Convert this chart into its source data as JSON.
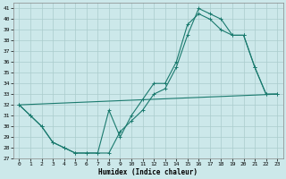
{
  "xlabel": "Humidex (Indice chaleur)",
  "xlim": [
    -0.5,
    23.5
  ],
  "ylim": [
    27,
    41.5
  ],
  "bg_color": "#cce8ea",
  "grid_color": "#aacccc",
  "line_color": "#1a7a6e",
  "line1_x": [
    0,
    1,
    2,
    3,
    4,
    5,
    6,
    7,
    8,
    9,
    10,
    11,
    12,
    13,
    14,
    15,
    16,
    17,
    18,
    19,
    20,
    21,
    22,
    23
  ],
  "line1_y": [
    32,
    31,
    30,
    28.5,
    28,
    27.5,
    27.5,
    27.5,
    27.5,
    29.5,
    30.5,
    31.5,
    33,
    33.5,
    35.5,
    38.5,
    41,
    40.5,
    40,
    38.5,
    38.5,
    35.5,
    33,
    33
  ],
  "line2_x": [
    0,
    1,
    2,
    3,
    4,
    5,
    6,
    7,
    8,
    9,
    10,
    11,
    12,
    13,
    14,
    15,
    16,
    17,
    18,
    19,
    20,
    21,
    22,
    23
  ],
  "line2_y": [
    32,
    31,
    30,
    28.5,
    28,
    27.5,
    27.5,
    27.5,
    31.5,
    29,
    31,
    32.5,
    34,
    34,
    36,
    39.5,
    40.5,
    40,
    39,
    38.5,
    38.5,
    35.5,
    33,
    33
  ],
  "line3_x": [
    0,
    23
  ],
  "line3_y": [
    32,
    33
  ],
  "xticks": [
    0,
    1,
    2,
    3,
    4,
    5,
    6,
    7,
    8,
    9,
    10,
    11,
    12,
    13,
    14,
    15,
    16,
    17,
    18,
    19,
    20,
    21,
    22,
    23
  ],
  "yticks": [
    27,
    28,
    29,
    30,
    31,
    32,
    33,
    34,
    35,
    36,
    37,
    38,
    39,
    40,
    41
  ]
}
